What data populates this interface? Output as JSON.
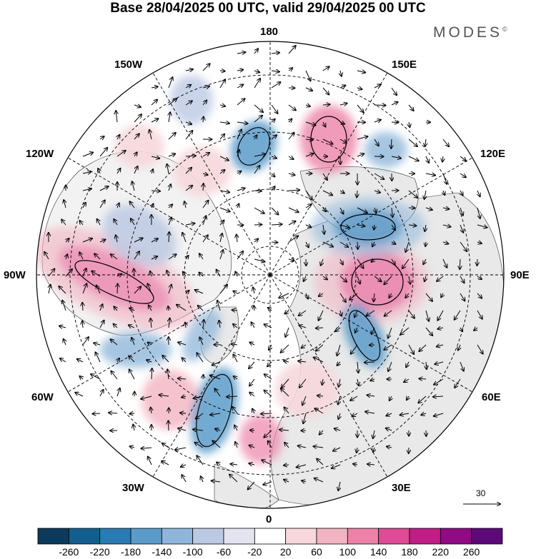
{
  "title": "Base 28/04/2025 00 UTC, valid 29/04/2025 00 UTC",
  "brand": "MODES",
  "brand_mark": "©",
  "longitude_labels": {
    "top": "180",
    "top_left": "150W",
    "top_right": "150E",
    "upper_left": "120W",
    "upper_right": "120E",
    "left": "90W",
    "right": "90E",
    "lower_left": "60W",
    "lower_right": "60E",
    "bottom_left": "30W",
    "bottom_right": "30E",
    "bottom": "0"
  },
  "reference_vector": "30",
  "colorbar": {
    "ticks": [
      "-260",
      "-220",
      "-180",
      "-140",
      "-100",
      "-60",
      "-20",
      "20",
      "60",
      "100",
      "140",
      "180",
      "220",
      "260"
    ],
    "colors": [
      "#0b3a5c",
      "#125e8e",
      "#2b7bb2",
      "#5b9bc9",
      "#8fb6da",
      "#bcc9e3",
      "#e4e4f1",
      "#ffffff",
      "#f6d7dc",
      "#f2b3c2",
      "#ec82a8",
      "#df4b95",
      "#c21d86",
      "#8f0a83",
      "#5c0a78"
    ]
  },
  "map": {
    "land_color": "#e9e9e9",
    "projection": "north-polar-stereographic"
  }
}
